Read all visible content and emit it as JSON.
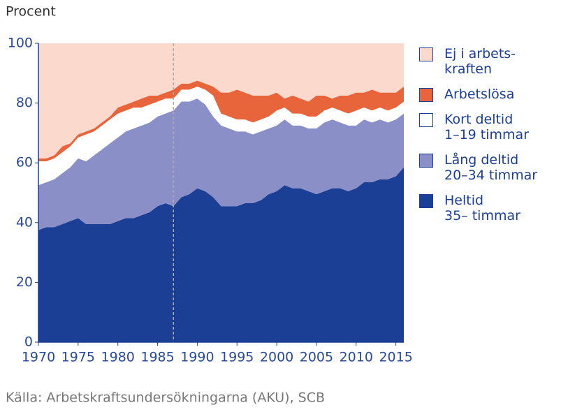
{
  "chart_data": {
    "type": "stacked_area",
    "y_label": "Procent",
    "source": "Källa: Arbetskraftsundersökningarna (AKU), SCB",
    "x": [
      1970,
      1971,
      1972,
      1973,
      1974,
      1975,
      1976,
      1977,
      1978,
      1979,
      1980,
      1981,
      1982,
      1983,
      1984,
      1985,
      1986,
      1987,
      1988,
      1989,
      1990,
      1991,
      1992,
      1993,
      1994,
      1995,
      1996,
      1997,
      1998,
      1999,
      2000,
      2001,
      2002,
      2003,
      2004,
      2005,
      2006,
      2007,
      2008,
      2009,
      2010,
      2011,
      2012,
      2013,
      2014,
      2015,
      2016
    ],
    "xlim": [
      1970,
      2016
    ],
    "xticks": [
      1970,
      1975,
      1980,
      1985,
      1990,
      1995,
      2000,
      2005,
      2010,
      2015
    ],
    "ylim": [
      0,
      100
    ],
    "yticks": [
      0,
      20,
      40,
      60,
      80,
      100
    ],
    "vline": 1987,
    "legend": "right",
    "series": [
      {
        "name": "Heltid\n35– timmar",
        "color": "#1b3f94",
        "values": [
          37.5,
          38.5,
          38.5,
          39.5,
          40.5,
          41.5,
          39.5,
          39.5,
          39.5,
          39.5,
          40.5,
          41.5,
          41.5,
          42.5,
          43.5,
          45.5,
          46.5,
          45.5,
          48.5,
          49.5,
          51.5,
          50.5,
          48.5,
          45.5,
          45.5,
          45.5,
          46.5,
          46.5,
          47.5,
          49.5,
          50.5,
          52.5,
          51.5,
          51.5,
          50.5,
          49.5,
          50.5,
          51.5,
          51.5,
          50.5,
          51.5,
          53.5,
          53.5,
          54.5,
          54.5,
          55.5,
          58.5
        ]
      },
      {
        "name": "Lång deltid\n20–34 timmar",
        "color": "#8b8fc8",
        "values": [
          15,
          15,
          16,
          17,
          18,
          20,
          21,
          23,
          25,
          27,
          28,
          29,
          30,
          30,
          30,
          30,
          30,
          32,
          32,
          31,
          30,
          29,
          27,
          27,
          26,
          25,
          24,
          23,
          23,
          22,
          22,
          22,
          21,
          21,
          21,
          22,
          23,
          23,
          22,
          22,
          21,
          21,
          20,
          20,
          19,
          19,
          18
        ]
      },
      {
        "name": "Kort deltid\n1–19 timmar",
        "color": "#ffffff",
        "values": [
          8,
          7,
          7,
          7,
          7,
          7,
          9,
          8,
          8,
          8,
          8,
          7,
          7,
          6,
          6,
          5,
          5,
          4,
          4,
          4,
          4,
          5,
          7,
          4,
          4,
          4,
          4,
          4,
          4,
          4,
          5,
          4,
          4,
          4,
          4,
          4,
          4,
          4,
          4,
          4,
          5,
          4,
          4,
          4,
          4,
          4,
          4
        ]
      },
      {
        "name": "Arbetslösa",
        "color": "#e8643a",
        "values": [
          1,
          1,
          1,
          2,
          1,
          1,
          1,
          1,
          1,
          1,
          2,
          2,
          2,
          3,
          3,
          2,
          2,
          3,
          2,
          2,
          2,
          2,
          3,
          7,
          8,
          10,
          9,
          9,
          8,
          7,
          6,
          3,
          6,
          5,
          5,
          7,
          5,
          3,
          5,
          6,
          6,
          5,
          7,
          5,
          6,
          5,
          5
        ]
      },
      {
        "name": "Ej i arbets-\nkraften",
        "color": "#fbd9cc",
        "values": [
          38.5,
          38.5,
          37.5,
          34.5,
          33.5,
          30.5,
          29.5,
          28.5,
          26.5,
          24.5,
          21.5,
          20.5,
          19.5,
          18.5,
          17.5,
          17.5,
          16.5,
          15.5,
          13.5,
          13.5,
          12.5,
          13.5,
          14.5,
          16.5,
          16.5,
          15.5,
          16.5,
          17.5,
          17.5,
          17.5,
          16.5,
          18.5,
          17.5,
          18.5,
          19.5,
          17.5,
          17.5,
          18.5,
          17.5,
          17.5,
          16.5,
          16.5,
          15.5,
          16.5,
          16.5,
          16.5,
          14.5
        ]
      }
    ]
  }
}
